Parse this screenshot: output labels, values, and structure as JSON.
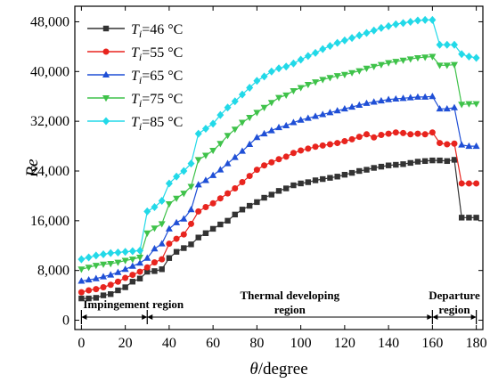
{
  "chart_data": {
    "type": "line",
    "xlabel_symbol": "θ",
    "xlabel_unit": "/degree",
    "ylabel": "Re",
    "xlim": [
      -3,
      183
    ],
    "ylim": [
      -1500,
      50500
    ],
    "xticks": [
      0,
      20,
      40,
      60,
      80,
      100,
      120,
      140,
      160,
      180
    ],
    "yticks": [
      0,
      8000,
      16000,
      24000,
      32000,
      40000,
      48000
    ],
    "ytick_labels": [
      "0",
      "8,000",
      "16,000",
      "24,000",
      "32,000",
      "40,000",
      "48,000"
    ],
    "legend_position": "top-left",
    "x": [
      0,
      3.33,
      6.67,
      10,
      13.33,
      16.67,
      20,
      23.33,
      26.67,
      30,
      33.33,
      36.67,
      40,
      43.33,
      46.67,
      50,
      53.33,
      56.67,
      60,
      63.33,
      66.67,
      70,
      73.33,
      76.67,
      80,
      83.33,
      86.67,
      90,
      93.33,
      96.67,
      100,
      103.33,
      106.67,
      110,
      113.33,
      116.67,
      120,
      123.33,
      126.67,
      130,
      133.33,
      136.67,
      140,
      143.33,
      146.67,
      150,
      153.33,
      156.67,
      160,
      163.33,
      166.67,
      170,
      173.33,
      176.67,
      180
    ],
    "series": [
      {
        "name": "=46 °C",
        "subscript": "i",
        "color": "#333333",
        "marker": "square",
        "values": [
          3500,
          3500,
          3600,
          4000,
          4200,
          4800,
          5300,
          6200,
          6700,
          7800,
          7900,
          8200,
          10000,
          11000,
          11600,
          12200,
          13300,
          14000,
          14700,
          15400,
          16000,
          17000,
          17800,
          18400,
          19000,
          19700,
          20200,
          20800,
          21200,
          21700,
          22000,
          22200,
          22500,
          22700,
          22900,
          23100,
          23400,
          23700,
          24000,
          24200,
          24500,
          24700,
          24900,
          25000,
          25100,
          25300,
          25500,
          25600,
          25700,
          25700,
          25600,
          25800,
          16500,
          16500,
          16500
        ]
      },
      {
        "name": "=55 °C",
        "subscript": "i",
        "color": "#e8241e",
        "marker": "circle",
        "values": [
          4500,
          4800,
          5000,
          5300,
          5700,
          6200,
          6800,
          7300,
          7800,
          8500,
          9300,
          9800,
          12300,
          13100,
          13800,
          15500,
          17500,
          18200,
          18800,
          19600,
          20400,
          21200,
          22200,
          23200,
          24200,
          24900,
          25400,
          25900,
          26300,
          26900,
          27300,
          27600,
          27900,
          28100,
          28300,
          28500,
          28800,
          29100,
          29500,
          29900,
          29400,
          29800,
          30000,
          30200,
          30100,
          29900,
          30000,
          29900,
          30200,
          28500,
          28300,
          28400,
          22000,
          22000,
          22000
        ]
      },
      {
        "name": "=65 °C",
        "subscript": "i",
        "color": "#1f4fd6",
        "marker": "triangle-up",
        "values": [
          6300,
          6500,
          6700,
          7000,
          7300,
          7700,
          8200,
          8700,
          9200,
          10000,
          11500,
          12300,
          14700,
          15700,
          16300,
          17800,
          21800,
          22500,
          23300,
          24200,
          25200,
          26200,
          27200,
          28300,
          29400,
          30000,
          30500,
          31000,
          31300,
          31800,
          32200,
          32500,
          32800,
          33100,
          33400,
          33700,
          34000,
          34300,
          34600,
          34900,
          35100,
          35300,
          35500,
          35600,
          35700,
          35800,
          35900,
          35900,
          36000,
          34000,
          34000,
          34200,
          28200,
          28000,
          28000
        ]
      },
      {
        "name": "=75 °C",
        "subscript": "i",
        "color": "#3fc24a",
        "marker": "triangle-down",
        "values": [
          8200,
          8500,
          8800,
          9000,
          9100,
          9300,
          9600,
          9800,
          10100,
          14000,
          14800,
          15500,
          18700,
          19600,
          20400,
          21500,
          25800,
          26500,
          27300,
          28400,
          29700,
          30700,
          31800,
          32600,
          33400,
          34200,
          35000,
          35800,
          36200,
          36900,
          37400,
          37900,
          38300,
          38700,
          39000,
          39300,
          39500,
          39800,
          40100,
          40500,
          40800,
          41100,
          41400,
          41600,
          41800,
          42000,
          42200,
          42300,
          42400,
          41000,
          41000,
          41100,
          34700,
          34800,
          34800
        ]
      },
      {
        "name": "=85 °C",
        "subscript": "i",
        "color": "#22d9e8",
        "marker": "diamond",
        "values": [
          9800,
          10100,
          10400,
          10600,
          10800,
          10900,
          11000,
          11100,
          11200,
          17500,
          18200,
          19200,
          22000,
          23100,
          24000,
          25200,
          30000,
          30800,
          31600,
          33000,
          34200,
          35200,
          36300,
          37400,
          38500,
          39200,
          40000,
          40500,
          40800,
          41300,
          41900,
          42500,
          43000,
          43600,
          44100,
          44600,
          45000,
          45400,
          45800,
          46200,
          46600,
          47000,
          47300,
          47600,
          47800,
          48000,
          48200,
          48300,
          48300,
          44300,
          44300,
          44300,
          42800,
          42400,
          42200
        ]
      }
    ],
    "regions": [
      {
        "label_lines": [
          "Impingement region"
        ],
        "x_start": 0,
        "x_end": 30
      },
      {
        "label_lines": [
          "Thermal developing",
          "region"
        ],
        "x_start": 30,
        "x_end": 160
      },
      {
        "label_lines": [
          "Departure",
          "region"
        ],
        "x_start": 160,
        "x_end": 180
      }
    ]
  }
}
